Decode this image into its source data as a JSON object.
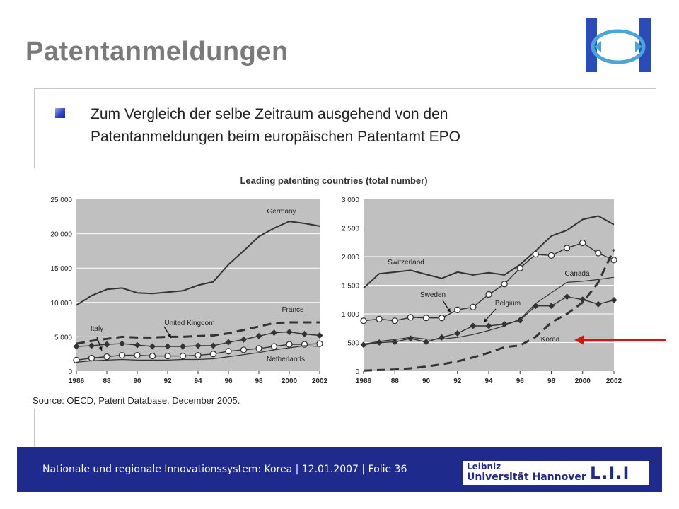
{
  "slide": {
    "title": "Patentanmeldungen",
    "bullet_line1": "Zum Vergleich der selbe Zeitraum ausgehend von den",
    "bullet_line2": "Patentanmeldungen beim europäischen Patentamt EPO"
  },
  "figure": {
    "title": "Leading patenting countries (total number)",
    "source": "Source:  OECD, Patent Database, December 2005."
  },
  "footer": {
    "text": "Nationale und regionale Innovationssystem: Korea | 12.01.2007 | Folie 36",
    "logo_line1": "Leibniz",
    "logo_line2": "Universität Hannover",
    "logo_mark": "L.I.I"
  },
  "colors": {
    "footer_bg": "#1e2a8c",
    "plot_bg": "#c0c0c0",
    "series": "#333333",
    "arrow": "#e01010"
  },
  "chart_data": [
    {
      "type": "line",
      "x": [
        1986,
        1987,
        1988,
        1989,
        1990,
        1991,
        1992,
        1993,
        1994,
        1995,
        1996,
        1997,
        1998,
        1999,
        2000,
        2001,
        2002
      ],
      "xticks": [
        "1986",
        "88",
        "90",
        "92",
        "94",
        "96",
        "98",
        "2000",
        "2002"
      ],
      "yticks": [
        "0",
        "5 000",
        "10 000",
        "15 000",
        "20 000",
        "25 000"
      ],
      "ylim": [
        0,
        25000
      ],
      "grid": true,
      "series": [
        {
          "name": "Germany",
          "style": "solid",
          "values": [
            9600,
            11000,
            11900,
            12100,
            11400,
            11300,
            11500,
            11700,
            12500,
            13000,
            15500,
            17500,
            19600,
            20800,
            21800,
            21500,
            21100
          ]
        },
        {
          "name": "France",
          "style": "dashed",
          "values": [
            4000,
            4400,
            4700,
            5000,
            4900,
            4900,
            5000,
            5000,
            5100,
            5200,
            5500,
            6000,
            6500,
            7000,
            7100,
            7100,
            7100
          ]
        },
        {
          "name": "United Kingdom",
          "style": "diamond",
          "values": [
            3600,
            3700,
            3900,
            4000,
            3800,
            3600,
            3600,
            3600,
            3700,
            3700,
            4200,
            4600,
            5100,
            5600,
            5700,
            5400,
            5200
          ]
        },
        {
          "name": "Italy",
          "style": "circle",
          "values": [
            1600,
            1900,
            2100,
            2300,
            2300,
            2200,
            2200,
            2200,
            2300,
            2500,
            2900,
            3100,
            3300,
            3600,
            3900,
            3900,
            4000
          ]
        },
        {
          "name": "Netherlands",
          "style": "thin",
          "values": [
            1300,
            1500,
            1600,
            1700,
            1600,
            1600,
            1600,
            1700,
            1700,
            1800,
            2100,
            2400,
            2700,
            3100,
            3400,
            3700,
            3600
          ]
        }
      ]
    },
    {
      "type": "line",
      "x": [
        1986,
        1987,
        1988,
        1989,
        1990,
        1991,
        1992,
        1993,
        1994,
        1995,
        1996,
        1997,
        1998,
        1999,
        2000,
        2001,
        2002
      ],
      "xticks": [
        "1986",
        "88",
        "90",
        "92",
        "94",
        "96",
        "98",
        "2000",
        "2002"
      ],
      "yticks": [
        "0",
        "500",
        "1 000",
        "1 500",
        "2 000",
        "2 500",
        "3 000"
      ],
      "ylim": [
        0,
        3000
      ],
      "grid": true,
      "series": [
        {
          "name": "Switzerland",
          "style": "solid",
          "values": [
            1450,
            1700,
            1730,
            1760,
            1690,
            1620,
            1730,
            1680,
            1720,
            1680,
            1860,
            2100,
            2360,
            2460,
            2650,
            2710,
            2560
          ]
        },
        {
          "name": "Sweden",
          "style": "circle",
          "values": [
            880,
            910,
            880,
            940,
            930,
            930,
            1070,
            1120,
            1340,
            1520,
            1800,
            2040,
            2020,
            2150,
            2240,
            2060,
            1940
          ]
        },
        {
          "name": "Belgium",
          "style": "diamond",
          "values": [
            460,
            500,
            510,
            570,
            510,
            590,
            660,
            790,
            790,
            820,
            890,
            1140,
            1140,
            1300,
            1250,
            1170,
            1240
          ]
        },
        {
          "name": "Canada",
          "style": "thin",
          "values": [
            470,
            520,
            550,
            590,
            560,
            560,
            590,
            640,
            710,
            790,
            910,
            1180,
            1370,
            1550,
            1570,
            1600,
            1640
          ]
        },
        {
          "name": "Korea",
          "style": "dashed",
          "values": [
            10,
            20,
            30,
            50,
            80,
            120,
            170,
            240,
            320,
            420,
            450,
            600,
            850,
            1000,
            1200,
            1550,
            2130
          ]
        }
      ]
    }
  ]
}
